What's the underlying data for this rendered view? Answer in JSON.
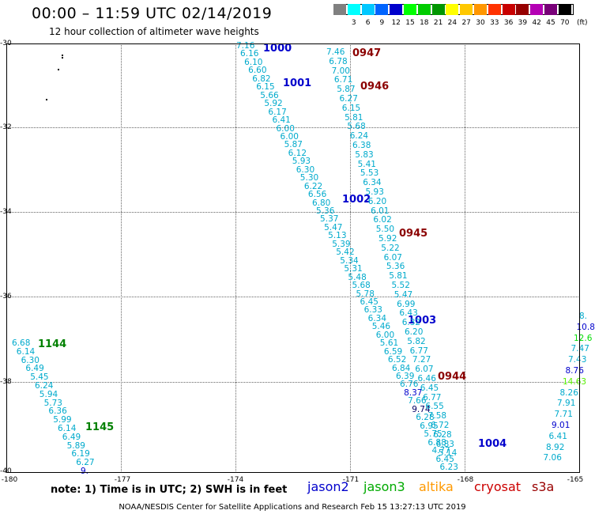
{
  "header": {
    "title": "00:00 – 11:59 UTC 02/14/2019",
    "subtitle": "12 hour collection of altimeter wave heights"
  },
  "legend": {
    "unit_label": "(ft)",
    "swatches": [
      {
        "label": "",
        "color": "#808080"
      },
      {
        "label": "3",
        "color": "#00ffff"
      },
      {
        "label": "6",
        "color": "#00c8ff"
      },
      {
        "label": "9",
        "color": "#0064ff"
      },
      {
        "label": "12",
        "color": "#0000cc"
      },
      {
        "label": "15",
        "color": "#00ff00"
      },
      {
        "label": "18",
        "color": "#00cc00"
      },
      {
        "label": "21",
        "color": "#009600"
      },
      {
        "label": "24",
        "color": "#ffff00"
      },
      {
        "label": "27",
        "color": "#ffc800"
      },
      {
        "label": "30",
        "color": "#ff9600"
      },
      {
        "label": "33",
        "color": "#ff3200"
      },
      {
        "label": "36",
        "color": "#c80000"
      },
      {
        "label": "39",
        "color": "#960000"
      },
      {
        "label": "42",
        "color": "#b400b4"
      },
      {
        "label": "45",
        "color": "#780078"
      },
      {
        "label": "70",
        "color": "#000000"
      }
    ]
  },
  "map": {
    "lat_labels": [
      "-30",
      "-32",
      "-34",
      "-36",
      "-38",
      "-40"
    ],
    "lon_labels": [
      "-180",
      "-177",
      "-174",
      "-171",
      "-168",
      "-165"
    ],
    "lat_range": [
      -40,
      -30
    ],
    "lon_range": [
      -180,
      -165
    ],
    "passes": [
      {
        "id": "p1000",
        "label": "1000",
        "color": "#0000cc"
      },
      {
        "id": "p1001",
        "label": "1001",
        "color": "#0000cc"
      },
      {
        "id": "p0947",
        "label": "0947",
        "color": "#8b0000"
      },
      {
        "id": "p0946",
        "label": "0946",
        "color": "#8b0000"
      },
      {
        "id": "p1002",
        "label": "1002",
        "color": "#0000cc"
      },
      {
        "id": "p0945",
        "label": "0945",
        "color": "#8b0000"
      },
      {
        "id": "p1003",
        "label": "1003",
        "color": "#0000cc"
      },
      {
        "id": "p0944",
        "label": "0944",
        "color": "#8b0000"
      },
      {
        "id": "p1004",
        "label": "1004",
        "color": "#0000cc"
      },
      {
        "id": "p1144",
        "label": "1144",
        "color": "#008000"
      },
      {
        "id": "p1145",
        "label": "1145",
        "color": "#008000"
      }
    ],
    "wave_values": [
      {
        "v": "7.16",
        "c": "#00aacc"
      },
      {
        "v": "6.16",
        "c": "#00aacc"
      },
      {
        "v": "6.10",
        "c": "#00aacc"
      },
      {
        "v": "6.60",
        "c": "#00aacc"
      },
      {
        "v": "6.82",
        "c": "#00aacc"
      },
      {
        "v": "6.15",
        "c": "#00aacc"
      },
      {
        "v": "5.66",
        "c": "#00aacc"
      },
      {
        "v": "5.92",
        "c": "#00aacc"
      },
      {
        "v": "6.17",
        "c": "#00aacc"
      },
      {
        "v": "6.41",
        "c": "#00aacc"
      },
      {
        "v": "6.00",
        "c": "#00aacc"
      },
      {
        "v": "6.00",
        "c": "#00aacc"
      },
      {
        "v": "5.87",
        "c": "#00aacc"
      },
      {
        "v": "6.12",
        "c": "#00aacc"
      },
      {
        "v": "5.93",
        "c": "#00aacc"
      },
      {
        "v": "6.30",
        "c": "#00aacc"
      },
      {
        "v": "5.30",
        "c": "#00aacc"
      },
      {
        "v": "6.22",
        "c": "#00aacc"
      },
      {
        "v": "6.56",
        "c": "#00aacc"
      },
      {
        "v": "6.80",
        "c": "#00aacc"
      },
      {
        "v": "5.36",
        "c": "#00aacc"
      },
      {
        "v": "5.37",
        "c": "#00aacc"
      },
      {
        "v": "5.47",
        "c": "#00aacc"
      },
      {
        "v": "5.13",
        "c": "#00aacc"
      },
      {
        "v": "5.39",
        "c": "#00aacc"
      },
      {
        "v": "5.42",
        "c": "#00aacc"
      },
      {
        "v": "5.34",
        "c": "#00aacc"
      },
      {
        "v": "5.31",
        "c": "#00aacc"
      },
      {
        "v": "5.48",
        "c": "#00aacc"
      },
      {
        "v": "5.68",
        "c": "#00aacc"
      },
      {
        "v": "5.78",
        "c": "#00aacc"
      },
      {
        "v": "6.45",
        "c": "#00aacc"
      },
      {
        "v": "6.33",
        "c": "#00aacc"
      },
      {
        "v": "6.34",
        "c": "#00aacc"
      },
      {
        "v": "5.46",
        "c": "#00aacc"
      },
      {
        "v": "6.00",
        "c": "#00aacc"
      },
      {
        "v": "5.61",
        "c": "#00aacc"
      },
      {
        "v": "6.59",
        "c": "#00aacc"
      },
      {
        "v": "6.52",
        "c": "#00aacc"
      },
      {
        "v": "6.84",
        "c": "#00aacc"
      },
      {
        "v": "6.39",
        "c": "#00aacc"
      },
      {
        "v": "6.76",
        "c": "#00aacc"
      },
      {
        "v": "8.37",
        "c": "#0000cc"
      },
      {
        "v": "7.66",
        "c": "#00aacc"
      },
      {
        "v": "9.74",
        "c": "#000066"
      },
      {
        "v": "6.28",
        "c": "#00aacc"
      },
      {
        "v": "6.95",
        "c": "#00aacc"
      },
      {
        "v": "5.75",
        "c": "#00aacc"
      },
      {
        "v": "6.88",
        "c": "#00aacc"
      },
      {
        "v": "4.77",
        "c": "#00aacc"
      },
      {
        "v": "6.45",
        "c": "#00aacc"
      },
      {
        "v": "6.23",
        "c": "#00aacc"
      },
      {
        "v": "7.46",
        "c": "#00aacc"
      },
      {
        "v": "6.78",
        "c": "#00aacc"
      },
      {
        "v": "7.00",
        "c": "#00aacc"
      },
      {
        "v": "6.71",
        "c": "#00aacc"
      },
      {
        "v": "5.87",
        "c": "#00aacc"
      },
      {
        "v": "6.27",
        "c": "#00aacc"
      },
      {
        "v": "6.15",
        "c": "#00aacc"
      },
      {
        "v": "5.81",
        "c": "#00aacc"
      },
      {
        "v": "5.68",
        "c": "#00aacc"
      },
      {
        "v": "6.24",
        "c": "#00aacc"
      },
      {
        "v": "6.38",
        "c": "#00aacc"
      },
      {
        "v": "5.83",
        "c": "#00aacc"
      },
      {
        "v": "5.41",
        "c": "#00aacc"
      },
      {
        "v": "5.53",
        "c": "#00aacc"
      },
      {
        "v": "6.34",
        "c": "#00aacc"
      },
      {
        "v": "5.93",
        "c": "#00aacc"
      },
      {
        "v": "6.20",
        "c": "#00aacc"
      },
      {
        "v": "6.01",
        "c": "#00aacc"
      },
      {
        "v": "6.02",
        "c": "#00aacc"
      },
      {
        "v": "5.50",
        "c": "#00aacc"
      },
      {
        "v": "5.92",
        "c": "#00aacc"
      },
      {
        "v": "5.22",
        "c": "#00aacc"
      },
      {
        "v": "6.07",
        "c": "#00aacc"
      },
      {
        "v": "5.36",
        "c": "#00aacc"
      },
      {
        "v": "5.81",
        "c": "#00aacc"
      },
      {
        "v": "5.52",
        "c": "#00aacc"
      },
      {
        "v": "5.47",
        "c": "#00aacc"
      },
      {
        "v": "6.99",
        "c": "#00aacc"
      },
      {
        "v": "6.43",
        "c": "#00aacc"
      },
      {
        "v": "6.32",
        "c": "#00aacc"
      },
      {
        "v": "6.20",
        "c": "#00aacc"
      },
      {
        "v": "5.82",
        "c": "#00aacc"
      },
      {
        "v": "6.77",
        "c": "#00aacc"
      },
      {
        "v": "7.27",
        "c": "#00aacc"
      },
      {
        "v": "6.07",
        "c": "#00aacc"
      },
      {
        "v": "6.46",
        "c": "#00aacc"
      },
      {
        "v": "6.45",
        "c": "#00aacc"
      },
      {
        "v": "6.77",
        "c": "#00aacc"
      },
      {
        "v": "6.55",
        "c": "#00aacc"
      },
      {
        "v": "7.58",
        "c": "#00aacc"
      },
      {
        "v": "6.72",
        "c": "#00aacc"
      },
      {
        "v": "6.28",
        "c": "#00aacc"
      },
      {
        "v": "6.83",
        "c": "#00aacc"
      },
      {
        "v": "5.14",
        "c": "#00aacc"
      },
      {
        "v": "6.68",
        "c": "#00aacc"
      },
      {
        "v": "6.14",
        "c": "#00aacc"
      },
      {
        "v": "6.30",
        "c": "#00aacc"
      },
      {
        "v": "6.49",
        "c": "#00aacc"
      },
      {
        "v": "5.45",
        "c": "#00aacc"
      },
      {
        "v": "6.24",
        "c": "#00aacc"
      },
      {
        "v": "5.94",
        "c": "#00aacc"
      },
      {
        "v": "5.73",
        "c": "#00aacc"
      },
      {
        "v": "6.36",
        "c": "#00aacc"
      },
      {
        "v": "5.99",
        "c": "#00aacc"
      },
      {
        "v": "6.14",
        "c": "#00aacc"
      },
      {
        "v": "6.49",
        "c": "#00aacc"
      },
      {
        "v": "5.89",
        "c": "#00aacc"
      },
      {
        "v": "6.19",
        "c": "#00aacc"
      },
      {
        "v": "6.27",
        "c": "#00aacc"
      },
      {
        "v": "9.",
        "c": "#0000cc"
      },
      {
        "v": "8.",
        "c": "#00aacc"
      },
      {
        "v": "10.8",
        "c": "#0000cc"
      },
      {
        "v": "12.6",
        "c": "#00dd00"
      },
      {
        "v": "7.47",
        "c": "#00aacc"
      },
      {
        "v": "7.43",
        "c": "#00aacc"
      },
      {
        "v": "8.76",
        "c": "#0000cc"
      },
      {
        "v": "14.63",
        "c": "#55ee00"
      },
      {
        "v": "8.26",
        "c": "#00aacc"
      },
      {
        "v": "7.91",
        "c": "#00aacc"
      },
      {
        "v": "7.71",
        "c": "#00aacc"
      },
      {
        "v": "9.01",
        "c": "#0000cc"
      },
      {
        "v": "6.41",
        "c": "#00aacc"
      },
      {
        "v": "8.92",
        "c": "#00aacc"
      },
      {
        "v": "7.06",
        "c": "#00aacc"
      }
    ]
  },
  "footer": {
    "note": "note: 1) Time is in UTC; 2) SWH is in feet",
    "satellites": [
      {
        "name": "jason2",
        "color": "#0000cc"
      },
      {
        "name": "jason3",
        "color": "#00aa00"
      },
      {
        "name": "altika",
        "color": "#ff9900"
      },
      {
        "name": "cryosat",
        "color": "#cc0000"
      },
      {
        "name": "s3a",
        "color": "#990000"
      }
    ],
    "credit": "NOAA/NESDIS Center for Satellite Applications and Research     Feb 15 13:27:13 UTC 2019"
  }
}
